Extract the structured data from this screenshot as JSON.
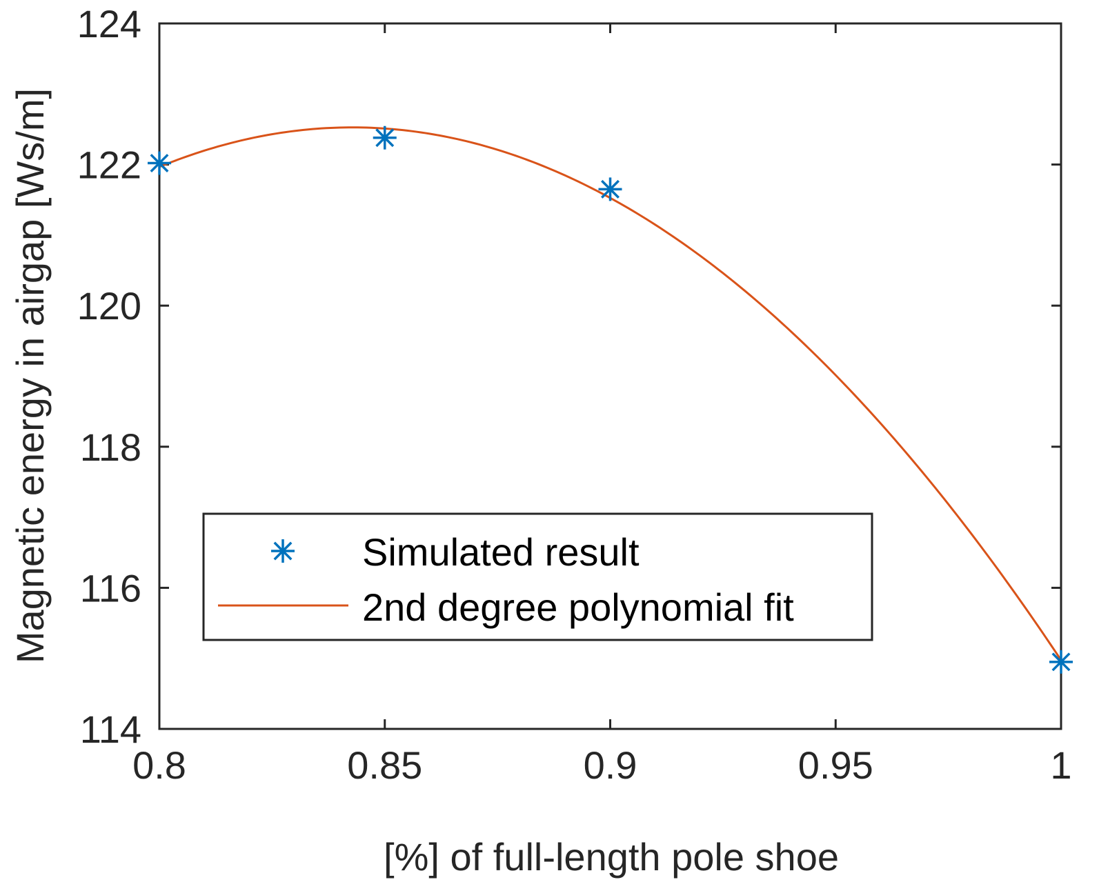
{
  "chart_data": {
    "type": "scatter",
    "title": "",
    "xlabel": "[%] of full-length pole shoe",
    "ylabel": "Magnetic energy in airgap [Ws/m]",
    "xlim": [
      0.8,
      1.0
    ],
    "ylim": [
      114,
      124
    ],
    "xticks": [
      0.8,
      0.85,
      0.9,
      0.95,
      1.0
    ],
    "xtick_labels": [
      "0.8",
      "0.85",
      "0.9",
      "0.95",
      "1"
    ],
    "yticks": [
      114,
      116,
      118,
      120,
      122,
      124
    ],
    "ytick_labels": [
      "114",
      "116",
      "118",
      "120",
      "122",
      "124"
    ],
    "grid": false,
    "legend_position": "bottom-center",
    "series": [
      {
        "name": "Simulated result",
        "type": "scatter",
        "marker": "asterisk",
        "color": "#0072BD",
        "x": [
          0.8,
          0.85,
          0.9,
          1.0
        ],
        "y": [
          122.02,
          122.38,
          121.65,
          114.95
        ]
      },
      {
        "name": "2nd degree polynomial fit",
        "type": "line",
        "color": "#D95319",
        "x": [
          0.8,
          0.825,
          0.85,
          0.875,
          0.9,
          0.925,
          0.95,
          0.975,
          1.0
        ],
        "y": [
          121.99,
          122.41,
          122.51,
          122.17,
          121.54,
          120.49,
          119.02,
          117.19,
          114.96
        ]
      }
    ]
  }
}
